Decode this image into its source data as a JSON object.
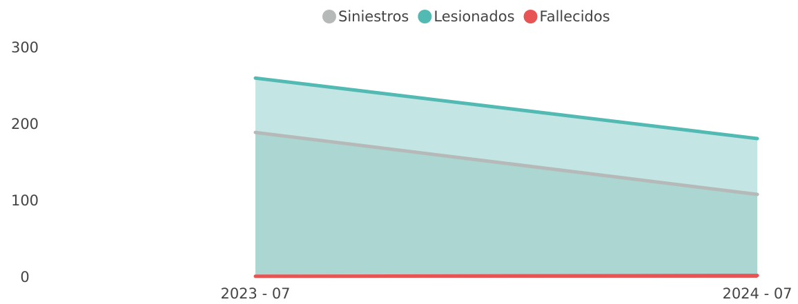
{
  "chart_data": {
    "type": "area",
    "categories": [
      "2023 - 07",
      "2024 - 07"
    ],
    "series": [
      {
        "name": "Siniestros",
        "color": "#b5bab8",
        "fill": "#a8d2cf",
        "values": [
          190,
          109
        ]
      },
      {
        "name": "Lesionados",
        "color": "#52b9b3",
        "fill": "#b9e2e0",
        "values": [
          261,
          182
        ]
      },
      {
        "name": "Fallecidos",
        "color": "#e85454",
        "fill": "#e85454",
        "values": [
          2,
          3
        ]
      }
    ],
    "ylim": [
      0,
      300
    ],
    "yticks": [
      0,
      100,
      200,
      300
    ],
    "grid": false,
    "legend": "top"
  }
}
